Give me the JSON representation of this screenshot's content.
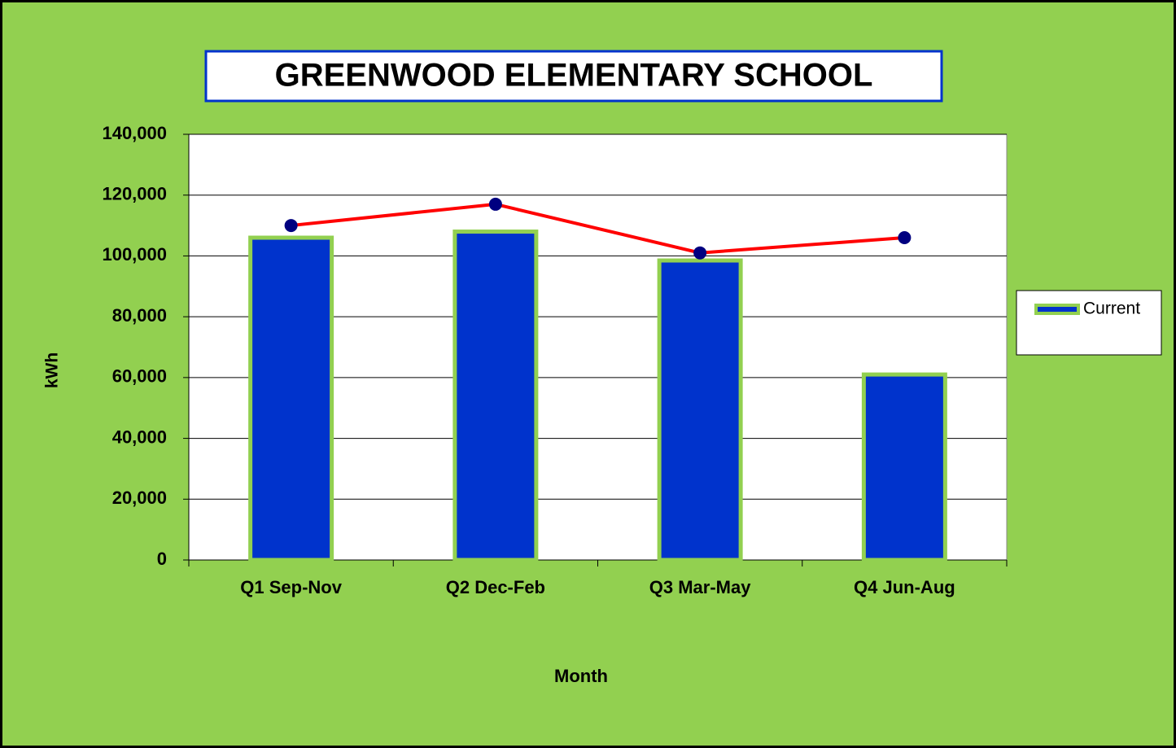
{
  "chart_data": {
    "type": "bar",
    "title": "GREENWOOD ELEMENTARY SCHOOL",
    "x_label": "Month",
    "y_label": "kWh",
    "categories": [
      "Q1 Sep-Nov",
      "Q2 Dec-Feb",
      "Q3 Mar-May",
      "Q4 Jun-Aug"
    ],
    "series": [
      {
        "name": "Current",
        "type": "bar",
        "color": "#0033cc",
        "edge_color": "#92d050",
        "values": [
          106000,
          108000,
          98500,
          61000
        ]
      },
      {
        "type": "line",
        "color": "#ff0000",
        "marker_color": "#000080",
        "values": [
          110000,
          117000,
          101000,
          106000
        ]
      }
    ],
    "ylim": [
      0,
      140000
    ],
    "yticks": [
      0,
      {
        "value": 20000,
        "label": "20,000"
      },
      {
        "value": 40000,
        "label": "40,000"
      },
      {
        "value": 60000,
        "label": "60,000"
      },
      {
        "value": 80000,
        "label": "80,000"
      },
      {
        "value": 100000,
        "label": "100,000"
      },
      {
        "value": 120000,
        "label": "120,000"
      },
      {
        "value": 140000,
        "label": "140,000"
      }
    ],
    "grid": true,
    "legend": "right"
  }
}
